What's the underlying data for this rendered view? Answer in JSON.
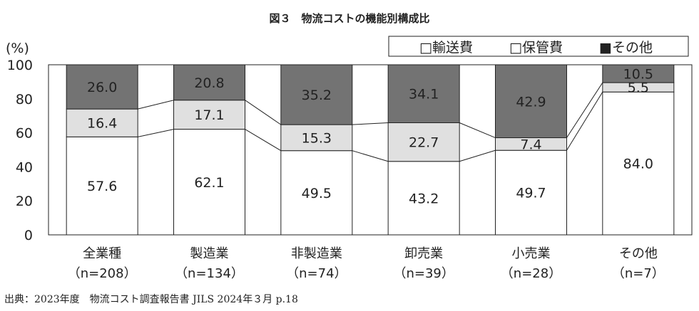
{
  "chart_data": {
    "type": "bar",
    "stacked": true,
    "percent": true,
    "title": "図３　物流コストの機能別構成比",
    "ylabel": "(%)",
    "ylim": [
      0,
      100
    ],
    "yticks": [
      "0",
      "20",
      "40",
      "60",
      "80",
      "100"
    ],
    "categories": [
      "全業種",
      "製造業",
      "非製造業",
      "卸売業",
      "小売業",
      "その他"
    ],
    "category_counts": [
      "（n=208）",
      "（n=134）",
      "（n=74）",
      "（n=39）",
      "（n=28）",
      "（n=7）"
    ],
    "series": [
      {
        "name": "□輸送費",
        "color": "#ffffff",
        "values": [
          57.6,
          62.1,
          49.5,
          43.2,
          49.7,
          84.0
        ],
        "labels": [
          "57.6",
          "62.1",
          "49.5",
          "43.2",
          "49.7",
          "84.0"
        ]
      },
      {
        "name": "□保管費",
        "color": "#e0e0e0",
        "values": [
          16.4,
          17.1,
          15.3,
          22.7,
          7.4,
          5.5
        ],
        "labels": [
          "16.4",
          "17.1",
          "15.3",
          "22.7",
          "7.4",
          "5.5"
        ]
      },
      {
        "name": "■その他",
        "color": "#737373",
        "values": [
          26.0,
          20.8,
          35.2,
          34.1,
          42.9,
          10.5
        ],
        "labels": [
          "26.0",
          "20.8",
          "35.2",
          "34.1",
          "42.9",
          "10.5"
        ]
      }
    ],
    "legend_position": "top-right",
    "grid": false,
    "connector_lines": true,
    "source": "出典：2023年度　物流コスト調査報告書 JILS 2024年３月 p.18"
  }
}
